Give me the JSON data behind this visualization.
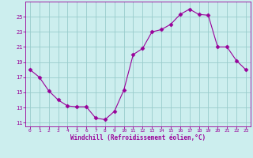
{
  "x": [
    0,
    1,
    2,
    3,
    4,
    5,
    6,
    7,
    8,
    9,
    10,
    11,
    12,
    13,
    14,
    15,
    16,
    17,
    18,
    19,
    20,
    21,
    22,
    23
  ],
  "y": [
    18.0,
    17.0,
    15.2,
    14.0,
    13.2,
    13.1,
    13.1,
    11.6,
    11.4,
    12.5,
    15.3,
    20.0,
    20.8,
    23.0,
    23.3,
    24.0,
    25.3,
    26.0,
    25.3,
    25.2,
    21.0,
    21.0,
    19.2,
    18.0
  ],
  "line_color": "#990099",
  "marker": "D",
  "marker_size": 2.5,
  "bg_color": "#cceeee",
  "grid_color": "#99cccc",
  "xlabel": "Windchill (Refroidissement éolien,°C)",
  "xlabel_color": "#990099",
  "tick_color": "#990099",
  "ylim": [
    10.5,
    27.0
  ],
  "yticks": [
    11,
    13,
    15,
    17,
    19,
    21,
    23,
    25
  ],
  "xlim": [
    -0.5,
    23.5
  ],
  "xticks": [
    0,
    1,
    2,
    3,
    4,
    5,
    6,
    7,
    8,
    9,
    10,
    11,
    12,
    13,
    14,
    15,
    16,
    17,
    18,
    19,
    20,
    21,
    22,
    23
  ]
}
